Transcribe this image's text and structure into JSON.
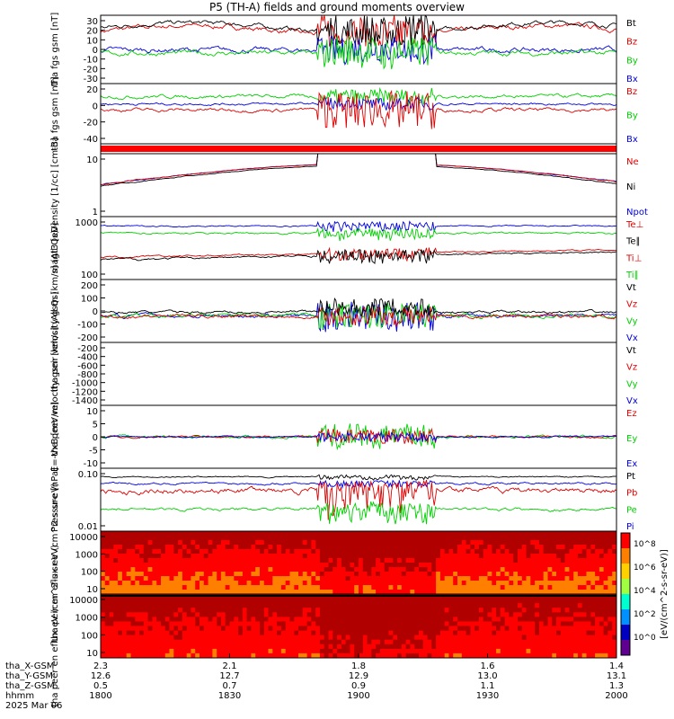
{
  "title": "P5 (TH-A) fields and ground moments overview",
  "date_label": "2025 Mar 06",
  "footer_rows": [
    {
      "name": "tha_X-GSM",
      "values": [
        "2.3",
        "2.1",
        "1.8",
        "1.6",
        "1.4"
      ]
    },
    {
      "name": "tha_Y-GSM",
      "values": [
        "12.6",
        "12.7",
        "12.9",
        "13.0",
        "13.1"
      ]
    },
    {
      "name": "tha_Z-GSM",
      "values": [
        "0.5",
        "0.7",
        "0.9",
        "1.1",
        "1.3"
      ]
    },
    {
      "name": "hhmm",
      "values": [
        "1800",
        "1830",
        "1900",
        "1930",
        "2000"
      ]
    }
  ],
  "colors": {
    "black": "#000000",
    "red": "#e00000",
    "green": "#00d000",
    "blue": "#0000e0"
  },
  "colorbar_label": "[eV/(cm^2-s-sr-eV)]",
  "colorbar_ticks": [
    "10^8",
    "10^6",
    "10^4",
    "10^2",
    "10^0"
  ],
  "chart_data": [
    {
      "type": "line",
      "ylabel": "tha fgs gsm [nT]",
      "ylim": [
        -30,
        35
      ],
      "yticks": [
        "30",
        "20",
        "10",
        "0",
        "-10",
        "-20",
        "-30"
      ],
      "x": [
        "1800",
        "1830",
        "1900",
        "1930",
        "2000"
      ],
      "series": [
        {
          "name": "Bt",
          "color": "black"
        },
        {
          "name": "Bz",
          "color": "red"
        },
        {
          "name": "By",
          "color": "green"
        },
        {
          "name": "Bx",
          "color": "blue"
        }
      ]
    },
    {
      "type": "line",
      "ylabel": "tha fgs gsm [nT]",
      "ylim": [
        -55,
        25
      ],
      "yticks": [
        "20",
        "0",
        "-20",
        "-40"
      ],
      "series": [
        {
          "name": "Bz",
          "color": "red"
        },
        {
          "name": "By",
          "color": "green"
        },
        {
          "name": "Bx",
          "color": "blue"
        }
      ]
    },
    {
      "type": "bar",
      "ylabel": "",
      "note": "red status bar"
    },
    {
      "type": "line",
      "ylabel": "Density [1/cc] [cm-3]",
      "log": true,
      "yticks": [
        "10",
        "1"
      ],
      "series": [
        {
          "name": "Ne",
          "color": "red"
        },
        {
          "name": "Ni",
          "color": "black"
        },
        {
          "name": "Npot",
          "color": "blue"
        }
      ]
    },
    {
      "type": "line",
      "ylabel": "magt3 [eV]",
      "log": true,
      "yticks": [
        "1000",
        "100"
      ],
      "series": [
        {
          "name": "Te⊥",
          "color": "red"
        },
        {
          "name": "Te∥",
          "color": "black"
        },
        {
          "name": "Ti⊥",
          "color": "red"
        },
        {
          "name": "Ti∥",
          "color": "green"
        }
      ]
    },
    {
      "type": "line",
      "ylabel": "tha peir velocity gsm [km/s] (All Qs)",
      "ylim": [
        -220,
        300
      ],
      "yticks": [
        "200",
        "100",
        "0",
        "-100",
        "-200"
      ],
      "series": [
        {
          "name": "Vt",
          "color": "black"
        },
        {
          "name": "Vz",
          "color": "red"
        },
        {
          "name": "Vy",
          "color": "green"
        },
        {
          "name": "Vx",
          "color": "blue"
        }
      ]
    },
    {
      "type": "line",
      "ylabel": "tha peer velocity gsm [km/s] (All Qs)",
      "yticks": [
        "-200",
        "-400",
        "-600",
        "-800",
        "-1000",
        "-1200",
        "-1400"
      ],
      "series": [
        {
          "name": "Vt",
          "color": "black"
        },
        {
          "name": "Vz",
          "color": "red"
        },
        {
          "name": "Vy",
          "color": "green"
        },
        {
          "name": "Vx",
          "color": "blue"
        }
      ]
    },
    {
      "type": "line",
      "ylabel": "E=-VxB [mV/m]",
      "ylim": [
        -13,
        13
      ],
      "yticks": [
        "10",
        "5",
        "0",
        "-5",
        "-10"
      ],
      "series": [
        {
          "name": "Ez",
          "color": "red"
        },
        {
          "name": "Ey",
          "color": "green"
        },
        {
          "name": "Ex",
          "color": "blue"
        }
      ]
    },
    {
      "type": "line",
      "ylabel": "Pressure [nPa]",
      "log": true,
      "yticks": [
        "0.10",
        "0.01"
      ],
      "series": [
        {
          "name": "Pt",
          "color": "black"
        },
        {
          "name": "Pb",
          "color": "red"
        },
        {
          "name": "Pe",
          "color": "green"
        },
        {
          "name": "Pi",
          "color": "blue"
        }
      ]
    },
    {
      "type": "heatmap",
      "ylabel": "tha peir en eflux eV (cm^2-s-sr-eV)",
      "yticks": [
        "10000",
        "1000",
        "100",
        "10"
      ]
    },
    {
      "type": "heatmap",
      "ylabel": "tha peer en eflux eV (cm^2-s-sr-eV)",
      "yticks": [
        "10000",
        "1000",
        "100",
        "10"
      ]
    }
  ]
}
